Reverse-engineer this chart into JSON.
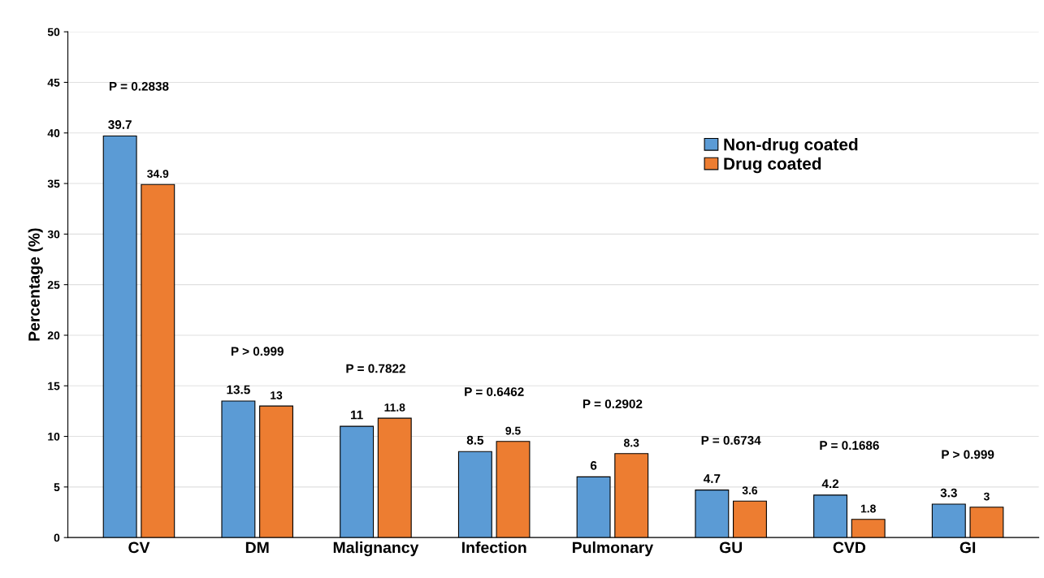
{
  "chart_data": {
    "type": "bar",
    "ylabel": "Percentage (%)",
    "categories": [
      "CV",
      "DM",
      "Malignancy",
      "Infection",
      "Pulmonary",
      "GU",
      "CVD",
      "GI"
    ],
    "series": [
      {
        "name": "Non-drug coated",
        "color": "#5b9bd5",
        "values": [
          39.7,
          13.5,
          11,
          8.5,
          6,
          4.7,
          4.2,
          3.3
        ]
      },
      {
        "name": "Drug coated",
        "color": "#ed7d31",
        "values": [
          34.9,
          13,
          11.8,
          9.5,
          8.3,
          3.6,
          1.8,
          3
        ]
      }
    ],
    "ylim": [
      0,
      50
    ],
    "yticks": [
      0,
      5,
      10,
      15,
      20,
      25,
      30,
      35,
      40,
      45,
      50
    ],
    "grid": "y",
    "legend": "top right",
    "data_labels": true,
    "annotations": [
      "P = 0.2838",
      "P > 0.999",
      "P = 0.7822",
      "P = 0.6462",
      "P = 0.2902",
      "P = 0.6734",
      "P = 0.1686",
      "P > 0.999"
    ]
  }
}
